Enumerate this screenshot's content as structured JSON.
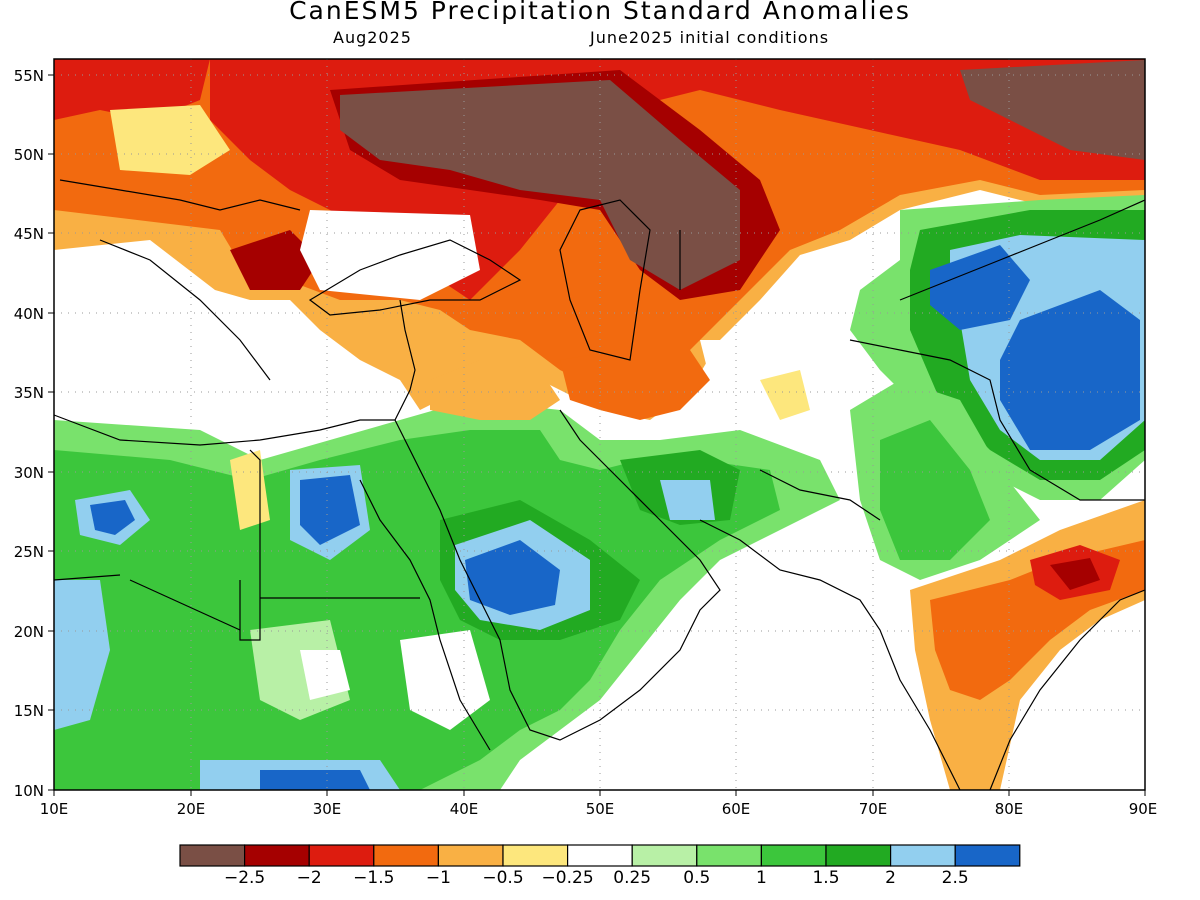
{
  "title": "CanESM5 Precipitation Standard Anomalies",
  "valid_month": "Aug2025",
  "init_conditions": "June2025 initial conditions",
  "axes": {
    "x_ticks": [
      "10E",
      "20E",
      "30E",
      "40E",
      "50E",
      "60E",
      "70E",
      "80E",
      "90E"
    ],
    "y_ticks": [
      "10N",
      "15N",
      "20N",
      "25N",
      "30N",
      "35N",
      "40N",
      "45N",
      "50N",
      "55N"
    ],
    "lon_range": [
      10,
      90
    ],
    "lat_range": [
      10,
      56
    ],
    "grid": "dotted"
  },
  "colorbar": {
    "colors": [
      "#7a4f45",
      "#a50000",
      "#dd1c0f",
      "#f26a0f",
      "#f9b044",
      "#fde77d",
      "#ffffff",
      "#b8f0a6",
      "#79e26c",
      "#3cc63c",
      "#22aa22",
      "#92cfef",
      "#1866c8"
    ],
    "labels": [
      "−2.5",
      "−2",
      "−1.5",
      "−1",
      "−0.5",
      "−0.25",
      "0.25",
      "0.5",
      "1",
      "1.5",
      "2",
      "2.5"
    ]
  }
}
